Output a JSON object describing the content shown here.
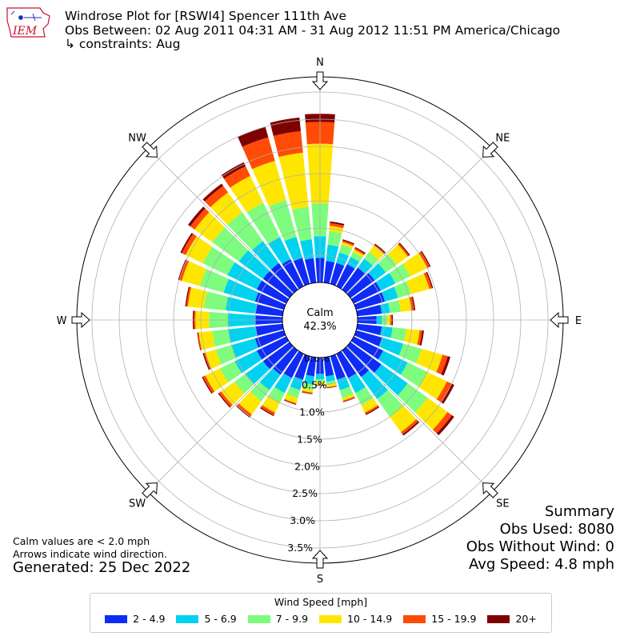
{
  "header": {
    "title": "Windrose Plot for [RSWI4] Spencer 111th Ave",
    "subtitle": "Obs Between: 02 Aug 2011 04:31 AM - 31 Aug 2012 11:51 PM America/Chicago",
    "constraints": "↳ constraints: Aug",
    "logo_text": "IEM"
  },
  "notes": {
    "calm_note": "Calm values are < 2.0 mph",
    "arrow_note": "Arrows indicate wind direction.",
    "generated": "Generated: 25 Dec 2022"
  },
  "summary": {
    "title": "Summary",
    "obs_used": "Obs Used: 8080",
    "obs_without_wind": "Obs Without Wind: 0",
    "avg_speed": "Avg Speed: 4.8 mph"
  },
  "center": {
    "label": "Calm",
    "value": "42.3%"
  },
  "legend": {
    "title": "Wind Speed [mph]"
  },
  "colors": [
    "#0f2cf5",
    "#00d2f0",
    "#7dfc7d",
    "#ffe600",
    "#ff4b05",
    "#7f0000"
  ],
  "chart_data": {
    "type": "windrose",
    "title": "Windrose Plot for [RSWI4] Spencer 111th Ave",
    "calm_percent": 42.3,
    "directions": [
      0,
      10,
      20,
      30,
      40,
      50,
      60,
      70,
      80,
      90,
      100,
      110,
      120,
      130,
      140,
      150,
      160,
      170,
      180,
      190,
      200,
      210,
      220,
      230,
      240,
      250,
      260,
      270,
      280,
      290,
      300,
      310,
      320,
      330,
      340,
      350
    ],
    "compass_labels": [
      "N",
      "NE",
      "E",
      "SE",
      "S",
      "SW",
      "W",
      "NW"
    ],
    "radial_ticks": [
      "0.0%",
      "0.5%",
      "1.0%",
      "1.5%",
      "2.0%",
      "2.5%",
      "3.0%",
      "3.5%"
    ],
    "radial_range_percent": [
      0,
      4.0
    ],
    "series": [
      {
        "name": "2 - 4.9",
        "values": [
          0.45,
          0.4,
          0.4,
          0.45,
          0.5,
          0.55,
          0.55,
          0.55,
          0.45,
          0.35,
          0.45,
          0.5,
          0.6,
          0.7,
          0.6,
          0.5,
          0.45,
          0.35,
          0.3,
          0.35,
          0.45,
          0.5,
          0.55,
          0.6,
          0.6,
          0.55,
          0.5,
          0.5,
          0.5,
          0.55,
          0.6,
          0.6,
          0.6,
          0.55,
          0.5,
          0.45
        ]
      },
      {
        "name": "5 - 6.9",
        "values": [
          0.4,
          0.3,
          0.2,
          0.15,
          0.2,
          0.25,
          0.3,
          0.25,
          0.15,
          0.1,
          0.2,
          0.4,
          0.5,
          0.6,
          0.5,
          0.3,
          0.2,
          0.1,
          0.1,
          0.15,
          0.2,
          0.3,
          0.35,
          0.4,
          0.45,
          0.45,
          0.5,
          0.5,
          0.55,
          0.6,
          0.6,
          0.55,
          0.5,
          0.45,
          0.4,
          0.35
        ]
      },
      {
        "name": "7 - 9.9",
        "values": [
          0.6,
          0.25,
          0.15,
          0.1,
          0.15,
          0.25,
          0.3,
          0.25,
          0.2,
          0.1,
          0.25,
          0.35,
          0.4,
          0.45,
          0.4,
          0.25,
          0.15,
          0.05,
          0.05,
          0.1,
          0.15,
          0.2,
          0.25,
          0.25,
          0.3,
          0.3,
          0.3,
          0.35,
          0.4,
          0.45,
          0.5,
          0.6,
          0.65,
          0.7,
          0.7,
          0.6
        ]
      },
      {
        "name": "10 - 14.9",
        "values": [
          1.1,
          0.1,
          0.05,
          0.05,
          0.15,
          0.25,
          0.35,
          0.35,
          0.2,
          0.05,
          0.25,
          0.4,
          0.4,
          0.45,
          0.35,
          0.15,
          0.05,
          0.05,
          0.05,
          0.05,
          0.1,
          0.2,
          0.3,
          0.3,
          0.3,
          0.2,
          0.25,
          0.25,
          0.3,
          0.35,
          0.35,
          0.4,
          0.45,
          0.55,
          0.75,
          1.0
        ]
      },
      {
        "name": "15 - 19.9",
        "values": [
          0.4,
          0.05,
          0.03,
          0.03,
          0.02,
          0.03,
          0.05,
          0.05,
          0.05,
          0.03,
          0.05,
          0.1,
          0.1,
          0.1,
          0.05,
          0.03,
          0.02,
          0.01,
          0.01,
          0.02,
          0.02,
          0.05,
          0.05,
          0.05,
          0.05,
          0.03,
          0.02,
          0.03,
          0.03,
          0.05,
          0.08,
          0.1,
          0.15,
          0.2,
          0.45,
          0.4
        ]
      },
      {
        "name": "20+",
        "values": [
          0.15,
          0.03,
          0.02,
          0.02,
          0.02,
          0.02,
          0.02,
          0.02,
          0.02,
          0.02,
          0.03,
          0.05,
          0.05,
          0.05,
          0.03,
          0.02,
          0.01,
          0.01,
          0.01,
          0.01,
          0.01,
          0.02,
          0.02,
          0.02,
          0.02,
          0.02,
          0.01,
          0.02,
          0.02,
          0.02,
          0.03,
          0.05,
          0.05,
          0.08,
          0.2,
          0.25
        ]
      }
    ]
  }
}
